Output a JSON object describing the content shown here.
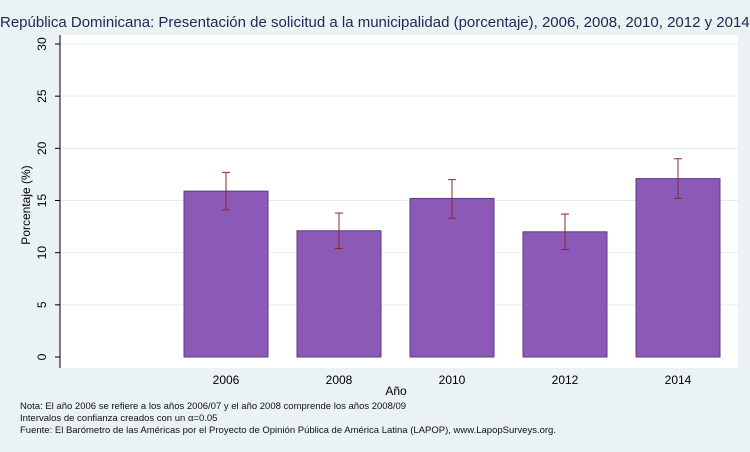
{
  "chart_data": {
    "type": "bar",
    "title": "República Dominicana: Presentación de solicitud a la municipalidad (porcentaje), 2006, 2008, 2010, 2012 y 2014.",
    "xlabel": "Año",
    "ylabel": "Porcentaje (%)",
    "ylim": [
      0,
      30
    ],
    "yticks": [
      0,
      5,
      10,
      15,
      20,
      25,
      30
    ],
    "categories": [
      "2006",
      "2008",
      "2010",
      "2012",
      "2014"
    ],
    "values": [
      15.9,
      12.1,
      15.2,
      12.0,
      17.1
    ],
    "ci_low": [
      14.1,
      10.4,
      13.3,
      10.3,
      15.2
    ],
    "ci_high": [
      17.7,
      13.8,
      17.0,
      13.7,
      19.0
    ],
    "grid": true,
    "colors": {
      "bar_fill": "#8b5ab6",
      "bar_stroke": "#5f3a86",
      "error_bar": "#8b2a2a",
      "grid": "#e5ecef",
      "plot_bg": "#ffffff",
      "page_bg": "#eaf2f3"
    }
  },
  "notes": {
    "line1": "Nota: El año 2006 se refiere a los años 2006/07 y el año 2008 comprende los años 2008/09",
    "line2": "Intervalos de confianza creados con un α=0.05",
    "line3": "Fuente: El Barómetro de las Américas por el Proyecto de Opinión Pública de América Latina (LAPOP), www.LapopSurveys.org."
  }
}
